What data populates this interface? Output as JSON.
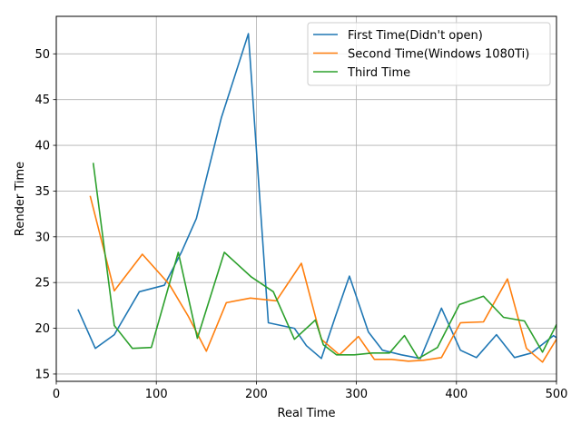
{
  "chart_data": {
    "type": "line",
    "xlabel": "Real Time",
    "ylabel": "Render Time",
    "xlim": [
      0,
      500
    ],
    "ylim": [
      14.2,
      54.1
    ],
    "xticks": [
      0,
      100,
      200,
      300,
      400,
      500
    ],
    "yticks": [
      15,
      20,
      25,
      30,
      35,
      40,
      45,
      50
    ],
    "grid": true,
    "legend_position": "top-right",
    "series": [
      {
        "name": "First Time(Didn't open)",
        "color": "#1f77b4",
        "x": [
          22,
          39,
          58,
          83,
          108,
          125,
          140,
          165,
          192,
          212,
          238,
          250,
          265,
          279,
          293,
          312,
          326,
          345,
          364,
          385,
          404,
          420,
          440,
          458,
          475,
          497,
          510
        ],
        "y": [
          22.0,
          17.8,
          19.3,
          24.0,
          24.7,
          28.3,
          32.0,
          43.0,
          52.2,
          20.6,
          20.0,
          18.1,
          16.7,
          21.3,
          25.7,
          19.6,
          17.6,
          17.1,
          16.7,
          22.2,
          17.6,
          16.8,
          19.3,
          16.8,
          17.3,
          19.2,
          18.2
        ]
      },
      {
        "name": "Second Time(Windows 1080Ti)",
        "color": "#ff7f0e",
        "x": [
          34,
          58,
          86,
          113,
          132,
          150,
          170,
          194,
          220,
          245,
          265,
          283,
          302,
          318,
          335,
          352,
          367,
          385,
          404,
          427,
          451,
          470,
          486,
          505
        ],
        "y": [
          34.4,
          24.1,
          28.1,
          24.8,
          21.3,
          17.5,
          22.8,
          23.3,
          23.0,
          27.1,
          18.8,
          17.1,
          19.1,
          16.6,
          16.6,
          16.4,
          16.5,
          16.8,
          20.6,
          20.7,
          25.4,
          17.8,
          16.3,
          19.7
        ]
      },
      {
        "name": "Third Time",
        "color": "#2ca02c",
        "x": [
          37,
          58,
          76,
          95,
          122,
          141,
          168,
          195,
          217,
          238,
          259,
          267,
          280,
          298,
          316,
          333,
          348,
          362,
          381,
          403,
          427,
          447,
          468,
          486,
          500,
          510
        ],
        "y": [
          38.0,
          20.3,
          17.8,
          17.9,
          28.3,
          18.9,
          28.3,
          25.6,
          24.0,
          18.8,
          20.9,
          18.2,
          17.1,
          17.1,
          17.3,
          17.3,
          19.2,
          16.7,
          17.9,
          22.6,
          23.5,
          21.2,
          20.8,
          17.4,
          20.4,
          21.4
        ]
      }
    ]
  }
}
